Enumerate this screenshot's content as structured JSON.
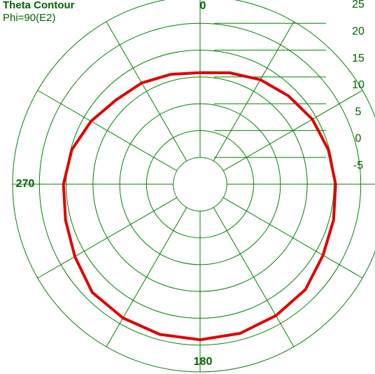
{
  "chart_data": {
    "type": "polar",
    "title": "Theta Contour",
    "subtitle": "Phi=90(E2)",
    "rlim": [
      -10,
      25
    ],
    "rticks": [
      -5,
      0,
      5,
      10,
      15,
      20,
      25
    ],
    "theta_grid": [
      0,
      30,
      60,
      90,
      120,
      150,
      180,
      210,
      240,
      270,
      300,
      330
    ],
    "theta_ticks": [
      0,
      180,
      270
    ],
    "theta_direction": "clockwise",
    "theta_zero": "top",
    "grid_color": "#008000",
    "series": [
      {
        "name": "E2",
        "color": "#e00000",
        "theta": [
          0,
          15,
          30,
          45,
          60,
          75,
          90,
          105,
          120,
          135,
          150,
          165,
          180,
          195,
          210,
          225,
          240,
          255,
          270,
          285,
          300,
          315,
          330,
          345
        ],
        "values": [
          10.8,
          11.5,
          12.5,
          13.3,
          14.2,
          14.8,
          15.3,
          15.8,
          16.5,
          17.8,
          18.3,
          18.8,
          19,
          19,
          18.8,
          18.5,
          17,
          16,
          15.5,
          14.8,
          13.5,
          12.2,
          11.8,
          11.2
        ]
      }
    ]
  }
}
